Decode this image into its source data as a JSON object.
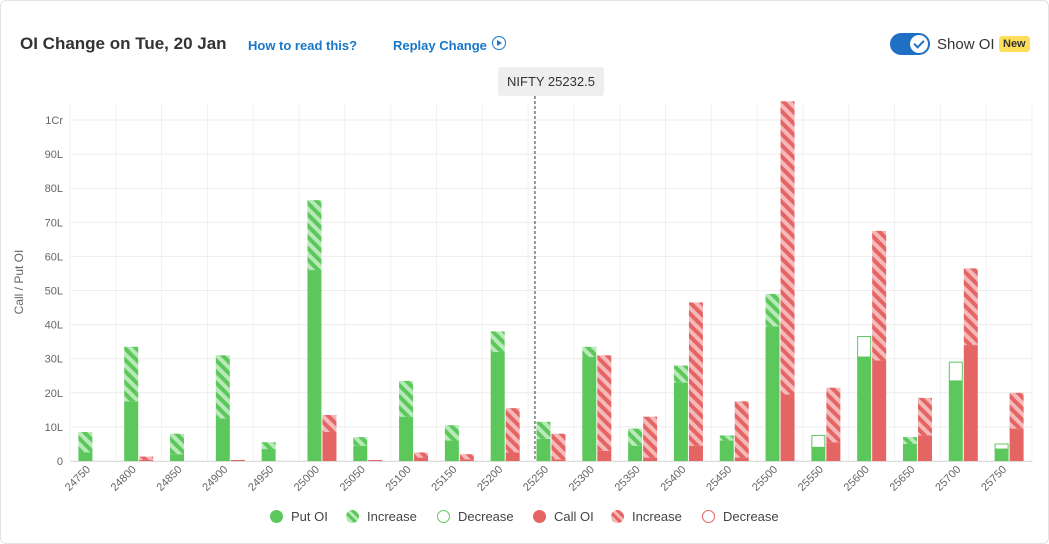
{
  "header": {
    "title": "OI Change on Tue, 20 Jan",
    "how_to_read": "How to read this?",
    "replay": "Replay Change",
    "toggle_label": "Show OI",
    "badge": "New",
    "toggle_on": true
  },
  "spot_label": "NIFTY 25232.5",
  "colors": {
    "put": "#5cc85c",
    "put_light": "#b5e8b5",
    "call": "#e56464",
    "call_light": "#f5b5b5"
  },
  "chart_data": {
    "type": "bar",
    "ylabel": "Call / Put OI",
    "yticks": [
      "0",
      "10L",
      "20L",
      "30L",
      "40L",
      "50L",
      "60L",
      "70L",
      "80L",
      "90L",
      "1Cr"
    ],
    "ytick_values": [
      0,
      10,
      20,
      30,
      40,
      50,
      60,
      70,
      80,
      90,
      100
    ],
    "ylim": [
      0,
      105
    ],
    "units": "lakh",
    "spot": 25232.5,
    "categories": [
      "24750",
      "24800",
      "24850",
      "24900",
      "24950",
      "25000",
      "25050",
      "25100",
      "25150",
      "25200",
      "25250",
      "25300",
      "25350",
      "25400",
      "25450",
      "25500",
      "25550",
      "25600",
      "25650",
      "25700",
      "25750"
    ],
    "series": [
      {
        "name": "Put OI",
        "values": [
          2.5,
          17.5,
          2,
          12.5,
          3.5,
          56,
          4.5,
          13,
          6,
          32,
          6.5,
          30.5,
          4.5,
          23,
          6,
          39.5,
          4,
          30.5,
          5,
          23.5,
          3.5
        ]
      },
      {
        "name": "Put OI Increase",
        "values": [
          6,
          16,
          6,
          18.5,
          2,
          20.5,
          2.5,
          10.5,
          4.5,
          6,
          5,
          3,
          5,
          5,
          1.5,
          9.5,
          0,
          0,
          2,
          0,
          0
        ]
      },
      {
        "name": "Put OI Decrease",
        "values": [
          0,
          0,
          0,
          0,
          0,
          0,
          0,
          0,
          0,
          0,
          0,
          0,
          0,
          0,
          0,
          0,
          3.5,
          6,
          0,
          5.5,
          1.5
        ]
      },
      {
        "name": "Call OI",
        "values": [
          0,
          0.3,
          0,
          0.3,
          0,
          8.5,
          0.3,
          1,
          0.5,
          2.5,
          0.5,
          3,
          1,
          4.5,
          1,
          19.5,
          5.5,
          29.5,
          7.5,
          34,
          9.5
        ]
      },
      {
        "name": "Call OI Increase",
        "values": [
          0,
          1,
          0,
          0,
          0,
          5,
          0,
          1.5,
          1.5,
          13,
          7.5,
          28,
          12,
          42,
          16.5,
          86,
          16,
          38,
          11,
          22.5,
          10.5
        ]
      },
      {
        "name": "Call OI Decrease",
        "values": [
          0,
          0,
          0,
          0,
          0,
          0,
          0,
          0,
          0,
          0,
          0,
          0,
          0,
          0,
          0,
          0,
          0,
          0,
          0,
          0,
          0
        ]
      }
    ]
  },
  "legend": [
    {
      "label": "Put OI",
      "style": "put"
    },
    {
      "label": "Increase",
      "style": "put-inc"
    },
    {
      "label": "Decrease",
      "style": "put-dec"
    },
    {
      "label": "Call OI",
      "style": "call"
    },
    {
      "label": "Increase",
      "style": "call-inc"
    },
    {
      "label": "Decrease",
      "style": "call-dec"
    }
  ]
}
